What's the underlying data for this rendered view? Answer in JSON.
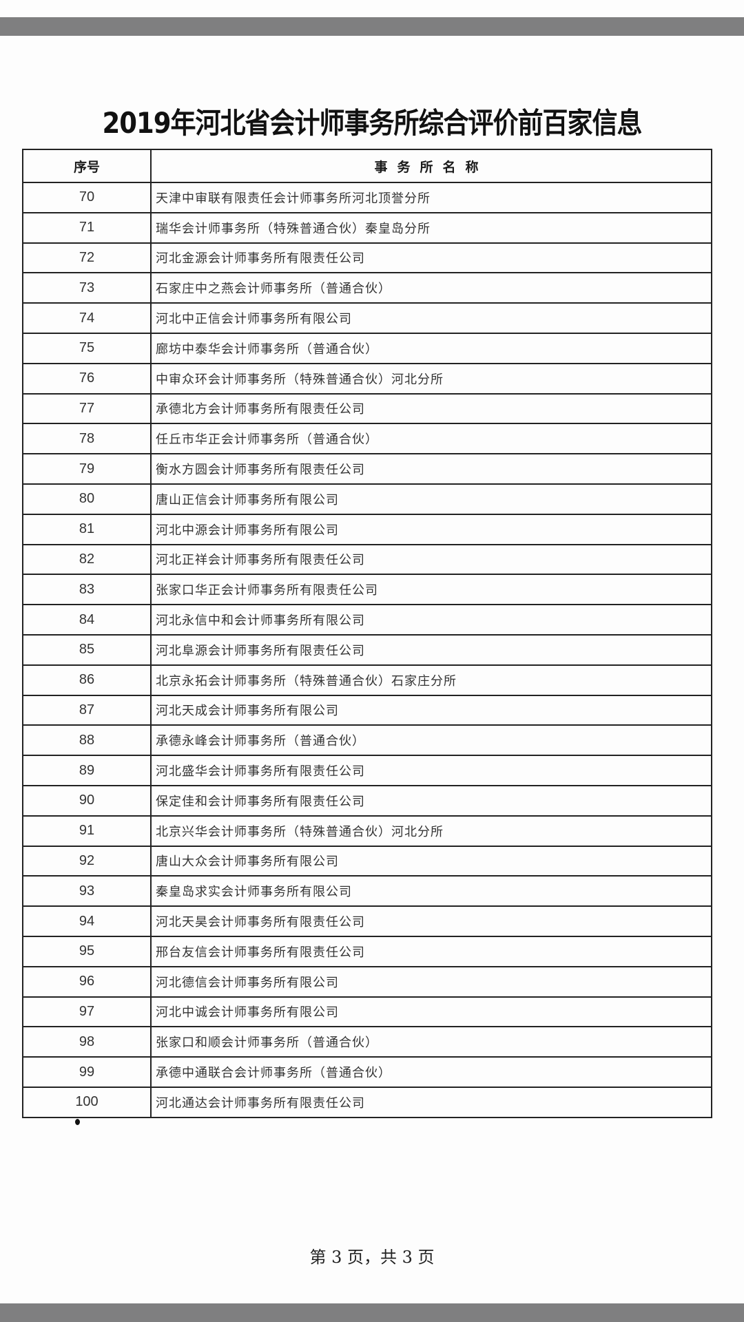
{
  "document": {
    "title": "2019年河北省会计师事务所综合评价前百家信息",
    "table": {
      "headers": {
        "number": "序号",
        "name": "事务所名称"
      },
      "rows": [
        {
          "number": "70",
          "name": "天津中审联有限责任会计师事务所河北顶誉分所"
        },
        {
          "number": "71",
          "name": "瑞华会计师事务所（特殊普通合伙）秦皇岛分所"
        },
        {
          "number": "72",
          "name": "河北金源会计师事务所有限责任公司"
        },
        {
          "number": "73",
          "name": "石家庄中之燕会计师事务所（普通合伙）"
        },
        {
          "number": "74",
          "name": "河北中正信会计师事务所有限公司"
        },
        {
          "number": "75",
          "name": "廊坊中泰华会计师事务所（普通合伙）"
        },
        {
          "number": "76",
          "name": "中审众环会计师事务所（特殊普通合伙）河北分所"
        },
        {
          "number": "77",
          "name": "承德北方会计师事务所有限责任公司"
        },
        {
          "number": "78",
          "name": "任丘市华正会计师事务所（普通合伙）"
        },
        {
          "number": "79",
          "name": "衡水方圆会计师事务所有限责任公司"
        },
        {
          "number": "80",
          "name": "唐山正信会计师事务所有限公司"
        },
        {
          "number": "81",
          "name": "河北中源会计师事务所有限公司"
        },
        {
          "number": "82",
          "name": "河北正祥会计师事务所有限责任公司"
        },
        {
          "number": "83",
          "name": "张家口华正会计师事务所有限责任公司"
        },
        {
          "number": "84",
          "name": "河北永信中和会计师事务所有限公司"
        },
        {
          "number": "85",
          "name": "河北阜源会计师事务所有限责任公司"
        },
        {
          "number": "86",
          "name": "北京永拓会计师事务所（特殊普通合伙）石家庄分所"
        },
        {
          "number": "87",
          "name": "河北天成会计师事务所有限公司"
        },
        {
          "number": "88",
          "name": "承德永峰会计师事务所（普通合伙）"
        },
        {
          "number": "89",
          "name": "河北盛华会计师事务所有限责任公司"
        },
        {
          "number": "90",
          "name": "保定佳和会计师事务所有限责任公司"
        },
        {
          "number": "91",
          "name": "北京兴华会计师事务所（特殊普通合伙）河北分所"
        },
        {
          "number": "92",
          "name": "唐山大众会计师事务所有限公司"
        },
        {
          "number": "93",
          "name": "秦皇岛求实会计师事务所有限公司"
        },
        {
          "number": "94",
          "name": "河北天昊会计师事务所有限责任公司"
        },
        {
          "number": "95",
          "name": "邢台友信会计师事务所有限责任公司"
        },
        {
          "number": "96",
          "name": "河北德信会计师事务所有限公司"
        },
        {
          "number": "97",
          "name": "河北中诚会计师事务所有限公司"
        },
        {
          "number": "98",
          "name": "张家口和顺会计师事务所（普通合伙）"
        },
        {
          "number": "99",
          "name": "承德中通联合会计师事务所（普通合伙）"
        },
        {
          "number": "100",
          "name": "河北通达会计师事务所有限责任公司"
        }
      ]
    },
    "footer": "第 3 页，共 3 页"
  },
  "colors": {
    "viewer_bar": "#7f7f80",
    "page": "#fdfdfd",
    "border": "#222222"
  }
}
